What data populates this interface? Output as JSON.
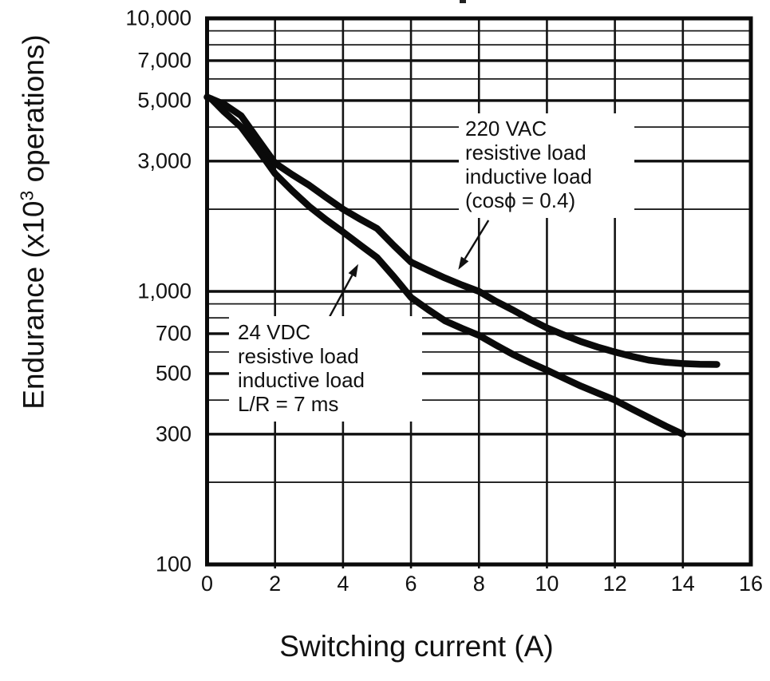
{
  "chart_data": {
    "type": "line",
    "title": "",
    "xlabel": "Switching current (A)",
    "ylabel": "Endurance (x10³ operations)",
    "ylabel_prefix": "Endurance (x10",
    "ylabel_sup": "3",
    "ylabel_suffix": " operations)",
    "xlim": [
      0,
      16
    ],
    "ylim": [
      100,
      10000
    ],
    "y_scale": "log",
    "grid": "on",
    "x_axis": {
      "ticks": [
        {
          "label": "0",
          "value": 0
        },
        {
          "label": "2",
          "value": 2
        },
        {
          "label": "4",
          "value": 4
        },
        {
          "label": "6",
          "value": 6
        },
        {
          "label": "8",
          "value": 8
        },
        {
          "label": "10",
          "value": 10
        },
        {
          "label": "12",
          "value": 12
        },
        {
          "label": "14",
          "value": 14
        },
        {
          "label": "16",
          "value": 16
        }
      ]
    },
    "y_axis": {
      "ticks": [
        {
          "label": "10,000",
          "value": 10000
        },
        {
          "label": "7,000",
          "value": 7000
        },
        {
          "label": "5,000",
          "value": 5000
        },
        {
          "label": "3,000",
          "value": 3000
        },
        {
          "label": "1,000",
          "value": 1000
        },
        {
          "label": "700",
          "value": 700
        },
        {
          "label": "500",
          "value": 500
        },
        {
          "label": "300",
          "value": 300
        },
        {
          "label": "100",
          "value": 100
        }
      ]
    },
    "gridlines": {
      "horizontal": [
        {
          "v": 200,
          "major": false
        },
        {
          "v": 300,
          "major": true
        },
        {
          "v": 400,
          "major": false
        },
        {
          "v": 500,
          "major": true
        },
        {
          "v": 600,
          "major": false
        },
        {
          "v": 700,
          "major": true
        },
        {
          "v": 800,
          "major": false
        },
        {
          "v": 900,
          "major": false
        },
        {
          "v": 1000,
          "major": true
        },
        {
          "v": 2000,
          "major": false
        },
        {
          "v": 3000,
          "major": true
        },
        {
          "v": 4000,
          "major": false
        },
        {
          "v": 5000,
          "major": true
        },
        {
          "v": 6000,
          "major": false
        },
        {
          "v": 7000,
          "major": true
        },
        {
          "v": 8000,
          "major": false
        },
        {
          "v": 9000,
          "major": false
        }
      ],
      "vertical": [
        2,
        4,
        6,
        8,
        10,
        12,
        14
      ]
    },
    "series": [
      {
        "name": "220 VAC resistive load / inductive load (cosϕ = 0.4)",
        "points": [
          [
            0,
            5150
          ],
          [
            0.5,
            4850
          ],
          [
            1,
            4400
          ],
          [
            1.5,
            3600
          ],
          [
            2,
            2950
          ],
          [
            2.5,
            2680
          ],
          [
            3,
            2450
          ],
          [
            3.5,
            2210
          ],
          [
            4,
            2000
          ],
          [
            4.5,
            1840
          ],
          [
            5,
            1700
          ],
          [
            5.5,
            1470
          ],
          [
            6,
            1280
          ],
          [
            6.5,
            1195
          ],
          [
            7,
            1120
          ],
          [
            7.5,
            1055
          ],
          [
            8,
            1000
          ],
          [
            8.5,
            920
          ],
          [
            9,
            855
          ],
          [
            9.5,
            790
          ],
          [
            10,
            735
          ],
          [
            10.5,
            693
          ],
          [
            11,
            655
          ],
          [
            11.5,
            625
          ],
          [
            12,
            600
          ],
          [
            12.5,
            578
          ],
          [
            13,
            560
          ],
          [
            13.5,
            550
          ],
          [
            14,
            544
          ],
          [
            14.5,
            541
          ],
          [
            15,
            540
          ]
        ]
      },
      {
        "name": "24 VDC resistive load / inductive load L/R = 7 ms",
        "points": [
          [
            0.12,
            5080
          ],
          [
            0.5,
            4550
          ],
          [
            1,
            4000
          ],
          [
            1.5,
            3300
          ],
          [
            2,
            2700
          ],
          [
            2.5,
            2340
          ],
          [
            3,
            2050
          ],
          [
            3.5,
            1830
          ],
          [
            4,
            1650
          ],
          [
            4.5,
            1480
          ],
          [
            5,
            1330
          ],
          [
            5.5,
            1130
          ],
          [
            6,
            950
          ],
          [
            6.5,
            858
          ],
          [
            7,
            780
          ],
          [
            7.5,
            732
          ],
          [
            8,
            690
          ],
          [
            8.5,
            636
          ],
          [
            9,
            588
          ],
          [
            9.5,
            549
          ],
          [
            10,
            515
          ],
          [
            10.5,
            481
          ],
          [
            11,
            450
          ],
          [
            11.5,
            424
          ],
          [
            12,
            400
          ],
          [
            12.5,
            371
          ],
          [
            13,
            345
          ],
          [
            13.5,
            321
          ],
          [
            14,
            300
          ]
        ]
      }
    ],
    "annotations": [
      {
        "id": "vac",
        "lines": [
          "220 VAC",
          "resistive load",
          "inductive load",
          "(cosϕ = 0.4)"
        ],
        "leader": {
          "from": [
            8.28,
            1820
          ],
          "to": [
            7.39,
            1200
          ]
        }
      },
      {
        "id": "vdc",
        "lines": [
          "24 VDC",
          "resistive load",
          "inductive load",
          "L/R = 7 ms"
        ],
        "leader": {
          "from": [
            3.61,
            810
          ],
          "to": [
            4.45,
            1260
          ]
        }
      }
    ]
  }
}
